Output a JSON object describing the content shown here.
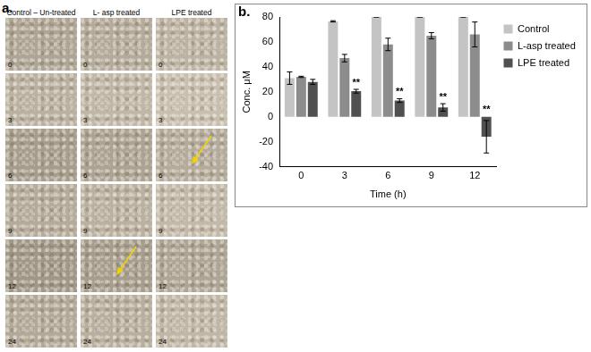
{
  "panel_labels": [
    "a.",
    "b."
  ],
  "figure_a": {
    "columns": [
      "Control – Un-treated",
      "L- asp treated",
      "LPE treated"
    ],
    "rows": [
      "0",
      "3",
      "6",
      "9",
      "12",
      "24"
    ]
  },
  "chart_data": {
    "type": "bar",
    "x_label": "Time (h)",
    "y_label": "Conc. μM",
    "categories": [
      "0",
      "3",
      "6",
      "9",
      "12"
    ],
    "series": [
      {
        "name": "Control",
        "color": "#c4c4c4",
        "values": [
          31,
          76.5,
          80,
          80,
          80
        ],
        "errors": [
          5,
          0.5,
          0,
          0,
          0
        ]
      },
      {
        "name": "L-asp treated",
        "color": "#8c8c8c",
        "values": [
          32,
          47,
          58,
          65,
          66
        ],
        "errors": [
          0.5,
          3,
          5,
          2.5,
          10
        ]
      },
      {
        "name": "LPE treated",
        "color": "#505050",
        "values": [
          28,
          20.5,
          13,
          7.5,
          -16
        ],
        "errors": [
          2,
          1.5,
          1.5,
          3,
          13
        ]
      }
    ],
    "annotations": [
      {
        "text": "**",
        "x": "3",
        "series": "LPE treated"
      },
      {
        "text": "**",
        "x": "6",
        "series": "LPE treated"
      },
      {
        "text": "**",
        "x": "9",
        "series": "LPE treated"
      },
      {
        "text": "**",
        "x": "12",
        "series": "LPE treated"
      }
    ],
    "ylim": [
      -40,
      80
    ],
    "yticks": [
      -40,
      -20,
      0,
      20,
      40,
      60,
      80
    ],
    "grid": false,
    "legend": "right"
  }
}
